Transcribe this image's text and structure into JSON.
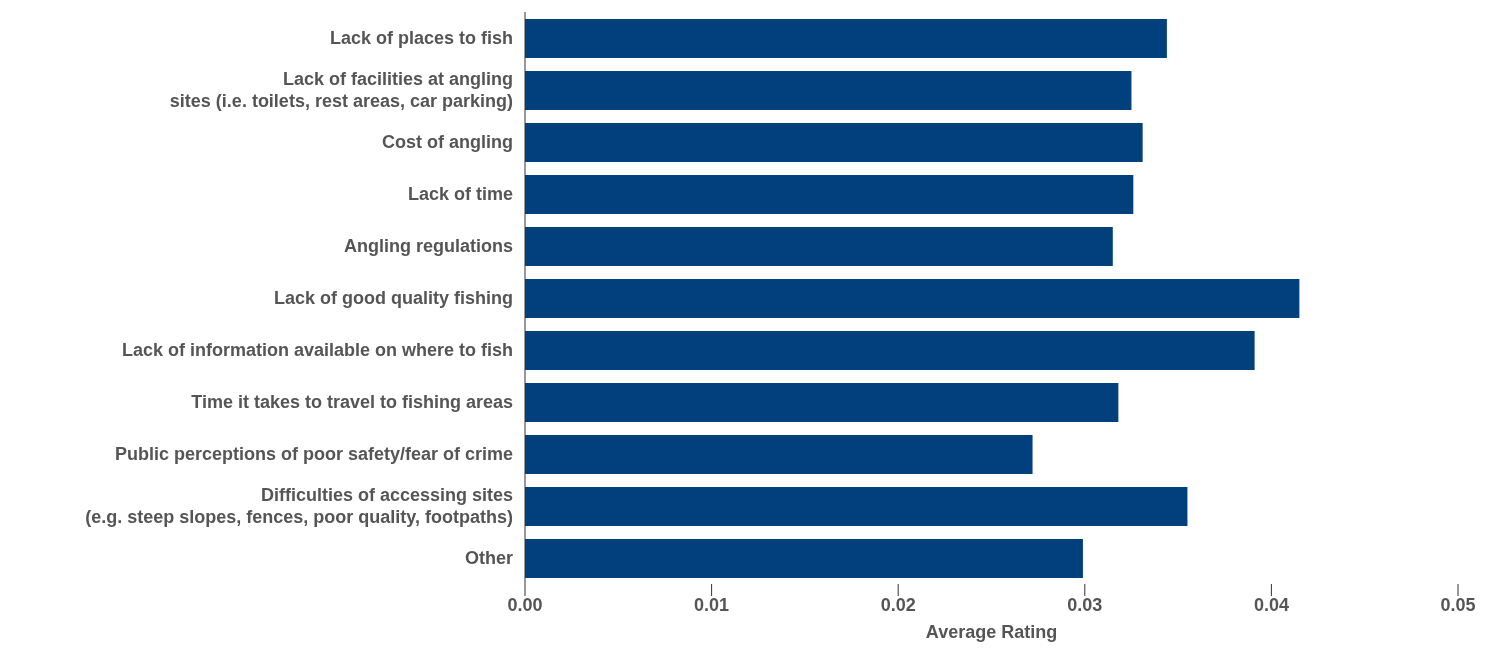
{
  "chart_data": {
    "type": "bar",
    "orientation": "horizontal",
    "xlabel": "Average Rating",
    "categories": [
      "Lack of places to fish",
      "Lack of facilities at angling\nsites (i.e. toilets, rest areas, car parking)",
      "Cost of angling",
      "Lack of time",
      "Angling regulations",
      "Lack of good quality fishing",
      "Lack of information available on where to fish",
      "Time it takes to travel to fishing areas",
      "Public perceptions of poor safety/fear of crime",
      "Difficulties of accessing sites\n(e.g. steep slopes, fences, poor quality, footpaths)",
      "Other"
    ],
    "values": [
      0.0344,
      0.0325,
      0.0331,
      0.0326,
      0.0315,
      0.0415,
      0.0391,
      0.0318,
      0.0272,
      0.0355,
      0.0299
    ],
    "color": "#023f7d",
    "xlim": [
      0,
      0.05
    ],
    "xticks": [
      {
        "value": 0,
        "label": "0.00"
      },
      {
        "value": 0.01,
        "label": "0.01"
      },
      {
        "value": 0.02,
        "label": "0.02"
      },
      {
        "value": 0.03,
        "label": "0.03"
      },
      {
        "value": 0.04,
        "label": "0.04"
      },
      {
        "value": 0.05,
        "label": "0.05"
      }
    ],
    "grid": false,
    "legend": false
  }
}
